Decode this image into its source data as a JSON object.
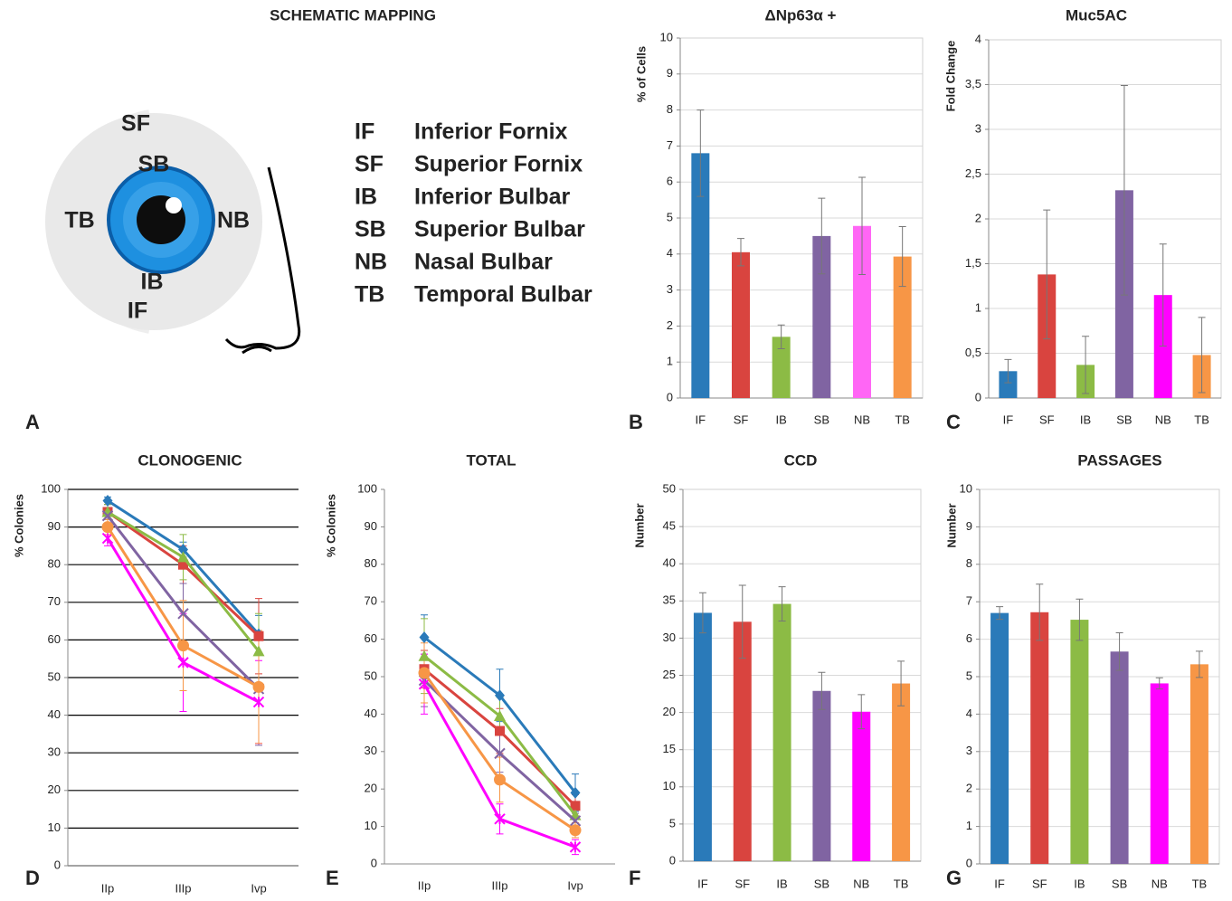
{
  "diagram": {
    "title": "SCHEMATIC MAPPING",
    "panel_label": "A",
    "eye_labels": {
      "SF": "SF",
      "SB": "SB",
      "TB": "TB",
      "NB": "NB",
      "IB": "IB",
      "IF": "IF"
    },
    "legend": [
      [
        "IF",
        "Inferior Fornix"
      ],
      [
        "SF",
        "Superior Fornix"
      ],
      [
        "IB",
        "Inferior Bulbar"
      ],
      [
        "SB",
        "Superior Bulbar"
      ],
      [
        "NB",
        "Nasal Bulbar"
      ],
      [
        "TB",
        "Temporal Bulbar"
      ]
    ]
  },
  "chart_data": [
    {
      "type": "bar",
      "title": "ΔNp63α +",
      "panel_label": "B",
      "y_label": "% of Cells",
      "categories": [
        "IF",
        "SF",
        "IB",
        "SB",
        "NB",
        "TB"
      ],
      "values": [
        6.8,
        4.05,
        1.7,
        4.5,
        4.78,
        3.93
      ],
      "errors": [
        1.2,
        0.38,
        0.33,
        1.05,
        1.35,
        0.83
      ],
      "colors": [
        "#2a7ab9",
        "#d9443f",
        "#8cbb45",
        "#8064a2",
        "#ff66f5",
        "#f79646"
      ],
      "ylim": [
        0,
        10
      ],
      "yticks": [
        0,
        1,
        2,
        3,
        4,
        5,
        6,
        7,
        8,
        9,
        10
      ],
      "grid": true
    },
    {
      "type": "bar",
      "title": "Muc5AC",
      "panel_label": "C",
      "y_label": "Fold Change",
      "categories": [
        "IF",
        "SF",
        "IB",
        "SB",
        "NB",
        "TB"
      ],
      "values": [
        0.3,
        1.38,
        0.37,
        2.32,
        1.15,
        0.48
      ],
      "errors": [
        0.13,
        0.72,
        0.32,
        1.17,
        0.57,
        0.42
      ],
      "colors": [
        "#2a7ab9",
        "#d9443f",
        "#8cbb45",
        "#8064a2",
        "#ff00ff",
        "#f79646"
      ],
      "ylim": [
        0,
        4
      ],
      "yticks": [
        0,
        {
          "value": 0.5,
          "label": "0,5"
        },
        1,
        {
          "value": 1.5,
          "label": "1,5"
        },
        2,
        {
          "value": 2.5,
          "label": "2,5"
        },
        3,
        {
          "value": 3.5,
          "label": "3,5"
        },
        4
      ],
      "grid": true
    },
    {
      "type": "line",
      "title": "CLONOGENIC",
      "panel_label": "D",
      "y_label": "% Colonies",
      "categories": [
        "IIp",
        "IIIp",
        "Ivp"
      ],
      "series": [
        {
          "color": "#2a7ab9",
          "marker": "diamond",
          "values": [
            97,
            84,
            61.5
          ],
          "errors": [
            1,
            2,
            5
          ]
        },
        {
          "color": "#d9443f",
          "marker": "square",
          "values": [
            94,
            80,
            61
          ],
          "errors": [
            2,
            5,
            10
          ]
        },
        {
          "color": "#8cbb45",
          "marker": "triangle",
          "values": [
            94,
            82,
            57
          ],
          "errors": [
            2,
            6,
            10
          ]
        },
        {
          "color": "#8064a2",
          "marker": "x",
          "values": [
            93,
            67,
            47
          ],
          "errors": [
            2,
            8,
            15
          ]
        },
        {
          "color": "#ff00ff",
          "marker": "star",
          "values": [
            87,
            54,
            43.5
          ],
          "errors": [
            2,
            13,
            11
          ]
        },
        {
          "color": "#f79646",
          "marker": "circle",
          "values": [
            90,
            58.5,
            47.5
          ],
          "errors": [
            2,
            12,
            15
          ]
        }
      ],
      "ylim": [
        0,
        100
      ],
      "yticks": [
        0,
        10,
        20,
        30,
        40,
        50,
        60,
        70,
        80,
        90,
        100
      ],
      "grid": true,
      "grid_color": "#000000"
    },
    {
      "type": "line",
      "title": "TOTAL",
      "panel_label": "E",
      "y_label": "% Colonies",
      "categories": [
        "IIp",
        "IIIp",
        "Ivp"
      ],
      "series": [
        {
          "color": "#2a7ab9",
          "marker": "diamond",
          "values": [
            60.5,
            45,
            19
          ],
          "errors": [
            6,
            7,
            5
          ]
        },
        {
          "color": "#d9443f",
          "marker": "square",
          "values": [
            52,
            35.5,
            15.5
          ],
          "errors": [
            5,
            6,
            3
          ]
        },
        {
          "color": "#8cbb45",
          "marker": "triangle",
          "values": [
            55.5,
            39.5,
            13
          ],
          "errors": [
            10,
            5,
            3
          ]
        },
        {
          "color": "#8064a2",
          "marker": "x",
          "values": [
            49,
            29.5,
            11.5
          ],
          "errors": [
            7,
            5,
            2
          ]
        },
        {
          "color": "#ff00ff",
          "marker": "star",
          "values": [
            48,
            12,
            4.5
          ],
          "errors": [
            8,
            4,
            2
          ]
        },
        {
          "color": "#f79646",
          "marker": "circle",
          "values": [
            51,
            22.5,
            9
          ],
          "errors": [
            8,
            6,
            2
          ]
        }
      ],
      "ylim": [
        0,
        100
      ],
      "yticks": [
        0,
        10,
        20,
        30,
        40,
        50,
        60,
        70,
        80,
        90,
        100
      ],
      "grid": false
    },
    {
      "type": "bar",
      "title": "CCD",
      "panel_label": "F",
      "y_label": "Number",
      "categories": [
        "IF",
        "SF",
        "IB",
        "SB",
        "NB",
        "TB"
      ],
      "values": [
        33.4,
        32.2,
        34.6,
        22.9,
        20.1,
        23.9
      ],
      "errors": [
        2.7,
        4.9,
        2.3,
        2.5,
        2.3,
        3.0
      ],
      "colors": [
        "#2a7ab9",
        "#d9443f",
        "#8cbb45",
        "#8064a2",
        "#ff00ff",
        "#f79646"
      ],
      "ylim": [
        0,
        50
      ],
      "yticks": [
        0,
        5,
        10,
        15,
        20,
        25,
        30,
        35,
        40,
        45,
        50
      ],
      "grid": true
    },
    {
      "type": "bar",
      "title": "PASSAGES",
      "panel_label": "G",
      "y_label": "Number",
      "categories": [
        "IF",
        "SF",
        "IB",
        "SB",
        "NB",
        "TB"
      ],
      "values": [
        6.7,
        6.72,
        6.52,
        5.67,
        4.82,
        5.33
      ],
      "errors": [
        0.17,
        0.75,
        0.55,
        0.5,
        0.15,
        0.35
      ],
      "colors": [
        "#2a7ab9",
        "#d9443f",
        "#8cbb45",
        "#8064a2",
        "#ff00ff",
        "#f79646"
      ],
      "ylim": [
        0,
        10
      ],
      "yticks": [
        0,
        1,
        2,
        3,
        4,
        5,
        6,
        7,
        8,
        9,
        10
      ],
      "grid": true
    }
  ]
}
